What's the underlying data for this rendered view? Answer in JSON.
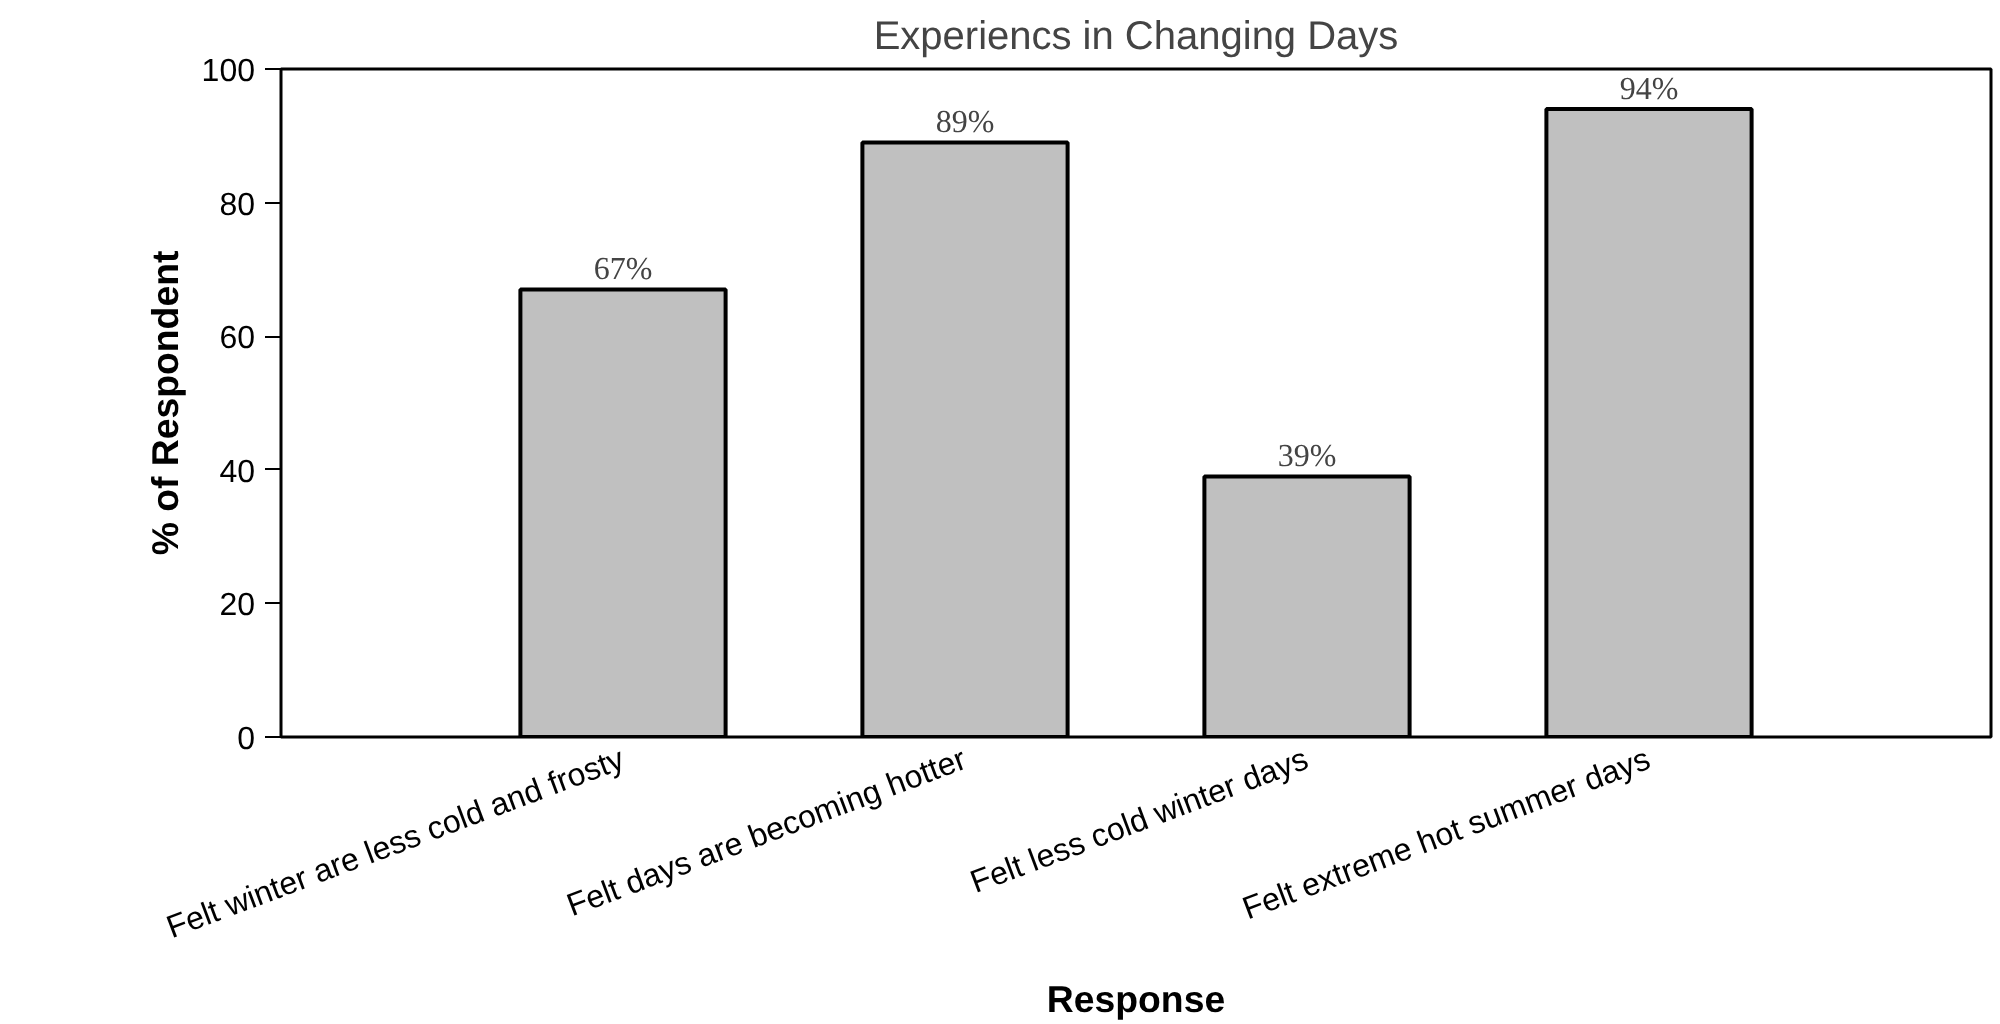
{
  "chart_data": {
    "type": "bar",
    "title": "Experiencs in Changing Days",
    "xlabel": "Response",
    "ylabel": "% of Respondent",
    "categories": [
      "Felt winter are less cold and frosty",
      "Felt days are becoming hotter",
      "Felt less cold winter days",
      "Felt extreme hot summer days"
    ],
    "values": [
      67,
      89,
      39,
      94
    ],
    "value_labels": [
      "67%",
      "89%",
      "39%",
      "94%"
    ],
    "color": "#c0c0c0",
    "ylim": [
      0,
      100
    ],
    "yticks": [
      0,
      20,
      40,
      60,
      80,
      100
    ],
    "grid": false
  }
}
